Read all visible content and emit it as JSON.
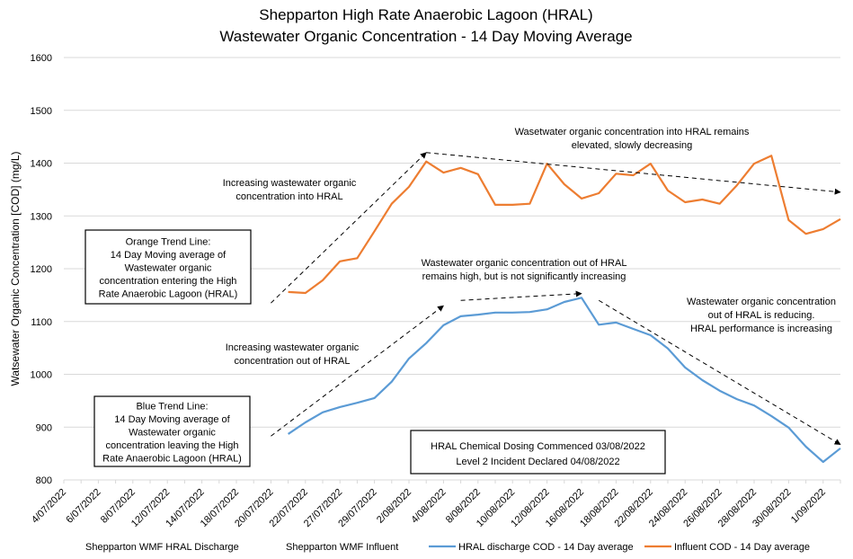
{
  "chart_data": {
    "type": "line",
    "title": [
      "Shepparton High Rate Anaerobic Lagoon (HRAL)",
      "Wastewater Organic Concentration - 14 Day Moving Average"
    ],
    "xlabel": "",
    "ylabel": "Watsewater Organic Concentration [COD] (mg/L)",
    "ylim": [
      800,
      1600
    ],
    "yticks": [
      800,
      900,
      1000,
      1100,
      1200,
      1300,
      1400,
      1500,
      1600
    ],
    "grid": true,
    "category_count": 46,
    "xtick_labels": [
      "4/07/2022",
      "6/07/2022",
      "8/07/2022",
      "12/07/2022",
      "14/07/2022",
      "18/07/2022",
      "20/07/2022",
      "22/07/2022",
      "27/07/2022",
      "29/07/2022",
      "2/08/2022",
      "4/08/2022",
      "8/08/2022",
      "10/08/2022",
      "12/08/2022",
      "16/08/2022",
      "18/08/2022",
      "22/08/2022",
      "24/08/2022",
      "26/08/2022",
      "28/08/2022",
      "30/08/2022",
      "1/09/2022"
    ],
    "series_start_index": 13,
    "series": [
      {
        "name": "HRAL discharge COD - 14 Day average",
        "color": "#5B9BD5",
        "values": [
          887,
          909,
          928,
          938,
          946,
          955,
          986,
          1030,
          1059,
          1093,
          1110,
          1113,
          1117,
          1117,
          1118,
          1123,
          1137,
          1145,
          1094,
          1098,
          1086,
          1074,
          1049,
          1013,
          989,
          969,
          953,
          941,
          921,
          899,
          863,
          834,
          860
        ]
      },
      {
        "name": "Influent COD - 14 Day average",
        "color": "#ED7D31",
        "values": [
          1156,
          1154,
          1178,
          1214,
          1220,
          1271,
          1323,
          1355,
          1403,
          1382,
          1391,
          1379,
          1321,
          1321,
          1323,
          1399,
          1360,
          1333,
          1343,
          1380,
          1377,
          1399,
          1348,
          1326,
          1331,
          1323,
          1358,
          1399,
          1414,
          1292,
          1266,
          1275,
          1294
        ]
      }
    ],
    "legend": {
      "placement": "bottom",
      "entries": [
        {
          "label": "Shepparton WMF HRAL Discharge",
          "swatch": false
        },
        {
          "label": "Shepparton WMF Influent",
          "swatch": false
        },
        {
          "label": "HRAL discharge COD - 14 Day average",
          "swatch": true,
          "color": "#5B9BD5"
        },
        {
          "label": "Influent COD - 14 Day average",
          "swatch": true,
          "color": "#ED7D31"
        }
      ]
    },
    "annotations": [
      {
        "id": "orange-rise",
        "lines": [
          "Increasing wastewater organic",
          "concentration into HRAL"
        ]
      },
      {
        "id": "orange-plateau",
        "lines": [
          "Wasetwater organic concentration into HRAL remains",
          "elevated, slowly decreasing"
        ]
      },
      {
        "id": "blue-rise",
        "lines": [
          "Increasing wastewater organic",
          "concentration out of HRAL"
        ]
      },
      {
        "id": "blue-plateau",
        "lines": [
          "Wastewater organic concentration out of HRAL",
          "remains high, but is not significantly increasing"
        ]
      },
      {
        "id": "blue-decline",
        "lines": [
          "Wastewater organic concentration",
          "out of HRAL is reducing.",
          "HRAL performance is increasing"
        ]
      }
    ],
    "trend_arrows": [
      {
        "id": "orange-rise-arrow",
        "from": {
          "index": 12,
          "value": 1135
        },
        "to": {
          "index": 21,
          "value": 1420
        }
      },
      {
        "id": "orange-plateau-arrow",
        "from": {
          "index": 21,
          "value": 1420
        },
        "to": {
          "index": 45,
          "value": 1345
        }
      },
      {
        "id": "blue-rise-arrow",
        "from": {
          "index": 12,
          "value": 883
        },
        "to": {
          "index": 22,
          "value": 1130
        }
      },
      {
        "id": "blue-plateau-arrow",
        "from": {
          "index": 23,
          "value": 1140
        },
        "to": {
          "index": 30,
          "value": 1153
        }
      },
      {
        "id": "blue-decline-arrow",
        "from": {
          "index": 31,
          "value": 1140
        },
        "to": {
          "index": 45,
          "value": 867
        }
      }
    ],
    "text_boxes": [
      {
        "id": "orange-trend-box",
        "lines": [
          "Orange Trend Line:",
          "14 Day Moving average of",
          "Wastewater organic",
          "concentration entering the High",
          "Rate Anaerobic Lagoon (HRAL)"
        ]
      },
      {
        "id": "blue-trend-box",
        "lines": [
          "Blue Trend Line:",
          "14 Day Moving average of",
          "Wastewater organic",
          "concentration leaving the High",
          "Rate Anaerobic Lagoon (HRAL)"
        ]
      },
      {
        "id": "dosing-box",
        "lines": [
          "HRAL Chemical Dosing Commenced 03/08/2022",
          "Level 2 Incident Declared 04/08/2022"
        ]
      }
    ]
  }
}
